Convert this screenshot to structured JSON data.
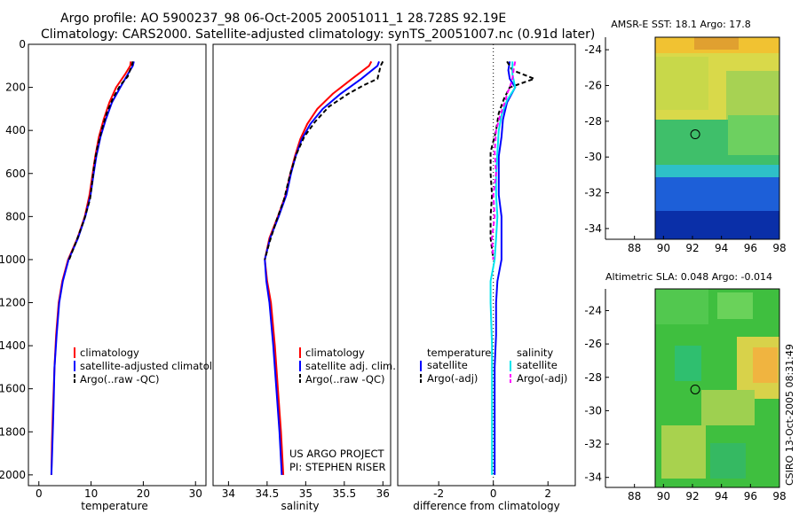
{
  "figure": {
    "title_line1": "Argo profile: AO 5900237_98 06-Oct-2005 20051011_1 28.728S 92.19E",
    "title_line2": "Climatology: CARS2000. Satellite-adjusted climatology: synTS_20051007.nc (0.91d later)",
    "project_line1": "US ARGO PROJECT",
    "project_line2": "PI: STEPHEN RISER",
    "side_stamp": "CSIRO 13-Oct-2005 08:31:49"
  },
  "colors": {
    "climatology": "#ff0000",
    "satellite": "#0000ff",
    "argo": "#000000",
    "sal_satellite": "#00e5ee",
    "sal_argo": "#ff00ff"
  },
  "chart_data": [
    {
      "type": "line",
      "id": "temperature",
      "xlabel": "temperature",
      "xlim": [
        -2,
        32
      ],
      "ylim": [
        0,
        2050
      ],
      "y_reversed": true,
      "xticks": [
        0,
        10,
        20,
        30
      ],
      "yticks": [
        0,
        200,
        400,
        600,
        800,
        1000,
        1200,
        1400,
        1600,
        1800,
        2000
      ],
      "legend": {
        "position": "lower-right",
        "entries": [
          "climatology",
          "satellite-adjusted climatology",
          "Argo(..raw -QC)"
        ]
      },
      "series": [
        {
          "name": "climatology",
          "style": "solid",
          "color": "#ff0000",
          "points": [
            [
              17.6,
              80
            ],
            [
              17.5,
              100
            ],
            [
              16.5,
              140
            ],
            [
              14.8,
              200
            ],
            [
              13.5,
              270
            ],
            [
              12.4,
              350
            ],
            [
              11.5,
              430
            ],
            [
              10.8,
              520
            ],
            [
              10.3,
              600
            ],
            [
              9.7,
              700
            ],
            [
              8.8,
              800
            ],
            [
              7.4,
              900
            ],
            [
              5.6,
              1000
            ],
            [
              4.5,
              1100
            ],
            [
              3.8,
              1200
            ],
            [
              3.3,
              1350
            ],
            [
              3.0,
              1500
            ],
            [
              2.7,
              1700
            ],
            [
              2.5,
              1850
            ],
            [
              2.4,
              2000
            ]
          ]
        },
        {
          "name": "satellite-adjusted climatology",
          "style": "solid",
          "color": "#0000ff",
          "points": [
            [
              18.2,
              80
            ],
            [
              18.0,
              100
            ],
            [
              17.0,
              140
            ],
            [
              15.6,
              200
            ],
            [
              14.0,
              270
            ],
            [
              12.8,
              350
            ],
            [
              11.8,
              430
            ],
            [
              11.0,
              520
            ],
            [
              10.5,
              600
            ],
            [
              9.9,
              700
            ],
            [
              8.9,
              800
            ],
            [
              7.5,
              900
            ],
            [
              5.7,
              1000
            ],
            [
              4.6,
              1100
            ],
            [
              3.9,
              1200
            ],
            [
              3.4,
              1350
            ],
            [
              3.0,
              1500
            ],
            [
              2.8,
              1700
            ],
            [
              2.6,
              1850
            ],
            [
              2.4,
              2000
            ]
          ]
        },
        {
          "name": "Argo(..raw -QC)",
          "style": "dashed",
          "color": "#000000",
          "points": [
            [
              18.0,
              80
            ],
            [
              17.8,
              100
            ],
            [
              17.3,
              130
            ],
            [
              17.0,
              150
            ],
            [
              15.6,
              190
            ],
            [
              14.2,
              250
            ],
            [
              13.0,
              320
            ],
            [
              12.0,
              400
            ],
            [
              11.2,
              480
            ],
            [
              10.6,
              560
            ],
            [
              10.2,
              640
            ],
            [
              9.8,
              720
            ],
            [
              8.6,
              820
            ],
            [
              7.1,
              920
            ],
            [
              5.8,
              1000
            ]
          ]
        }
      ]
    },
    {
      "type": "line",
      "id": "salinity",
      "xlabel": "salinity",
      "xlim": [
        33.8,
        36.1
      ],
      "ylim": [
        0,
        2050
      ],
      "y_reversed": true,
      "xticks": [
        34,
        34.5,
        35,
        35.5,
        36
      ],
      "legend": {
        "position": "lower-right",
        "entries": [
          "climatology",
          "satellite adj. clim.",
          "Argo(..raw -QC)"
        ]
      },
      "series": [
        {
          "name": "climatology",
          "style": "solid",
          "color": "#ff0000",
          "points": [
            [
              35.85,
              80
            ],
            [
              35.82,
              100
            ],
            [
              35.6,
              160
            ],
            [
              35.35,
              230
            ],
            [
              35.15,
              300
            ],
            [
              35.02,
              370
            ],
            [
              34.93,
              440
            ],
            [
              34.86,
              520
            ],
            [
              34.8,
              600
            ],
            [
              34.74,
              700
            ],
            [
              34.64,
              800
            ],
            [
              34.53,
              900
            ],
            [
              34.47,
              1000
            ],
            [
              34.5,
              1100
            ],
            [
              34.55,
              1200
            ],
            [
              34.6,
              1400
            ],
            [
              34.64,
              1600
            ],
            [
              34.68,
              1800
            ],
            [
              34.71,
              2000
            ]
          ]
        },
        {
          "name": "satellite adj. clim.",
          "style": "solid",
          "color": "#0000ff",
          "points": [
            [
              35.95,
              80
            ],
            [
              35.93,
              100
            ],
            [
              35.72,
              160
            ],
            [
              35.45,
              230
            ],
            [
              35.22,
              300
            ],
            [
              35.06,
              370
            ],
            [
              34.95,
              440
            ],
            [
              34.87,
              520
            ],
            [
              34.81,
              600
            ],
            [
              34.75,
              700
            ],
            [
              34.65,
              800
            ],
            [
              34.54,
              900
            ],
            [
              34.47,
              1000
            ],
            [
              34.49,
              1100
            ],
            [
              34.53,
              1200
            ],
            [
              34.58,
              1400
            ],
            [
              34.62,
              1600
            ],
            [
              34.66,
              1800
            ],
            [
              34.69,
              2000
            ]
          ]
        },
        {
          "name": "Argo(..raw -QC)",
          "style": "dashed",
          "color": "#000000",
          "points": [
            [
              36.0,
              80
            ],
            [
              35.97,
              100
            ],
            [
              35.95,
              130
            ],
            [
              35.93,
              160
            ],
            [
              35.75,
              190
            ],
            [
              35.55,
              230
            ],
            [
              35.3,
              290
            ],
            [
              35.12,
              360
            ],
            [
              34.98,
              430
            ],
            [
              34.88,
              510
            ],
            [
              34.8,
              600
            ],
            [
              34.72,
              720
            ],
            [
              34.62,
              820
            ],
            [
              34.53,
              920
            ],
            [
              34.47,
              1000
            ]
          ]
        }
      ]
    },
    {
      "type": "line",
      "id": "difference",
      "xlabel": "difference from climatology",
      "xlim": [
        -3.5,
        3.0
      ],
      "ylim": [
        0,
        2050
      ],
      "y_reversed": true,
      "xticks": [
        -2,
        0,
        2
      ],
      "zero_line": {
        "x": 0,
        "style": "dotted"
      },
      "legend": {
        "position": "lower-right",
        "groups": [
          {
            "title": "temperature",
            "entries": [
              "satellite",
              "Argo(-adj)"
            ]
          },
          {
            "title": "salinity",
            "entries": [
              "satellite",
              "Argo(-adj)"
            ]
          }
        ]
      },
      "series": [
        {
          "name": "temperature satellite",
          "style": "solid",
          "color": "#0000ff",
          "points": [
            [
              0.6,
              80
            ],
            [
              0.55,
              120
            ],
            [
              0.6,
              160
            ],
            [
              0.8,
              200
            ],
            [
              0.5,
              270
            ],
            [
              0.35,
              350
            ],
            [
              0.3,
              430
            ],
            [
              0.2,
              520
            ],
            [
              0.2,
              600
            ],
            [
              0.2,
              700
            ],
            [
              0.3,
              800
            ],
            [
              0.3,
              900
            ],
            [
              0.3,
              1000
            ],
            [
              0.15,
              1100
            ],
            [
              0.1,
              1200
            ],
            [
              0.1,
              1350
            ],
            [
              0.05,
              1500
            ],
            [
              0.05,
              1700
            ],
            [
              0.05,
              1850
            ],
            [
              0.05,
              2000
            ]
          ]
        },
        {
          "name": "temperature Argo(-adj)",
          "style": "dashed",
          "color": "#000000",
          "points": [
            [
              0.5,
              80
            ],
            [
              0.7,
              120
            ],
            [
              1.5,
              160
            ],
            [
              0.6,
              200
            ],
            [
              0.4,
              250
            ],
            [
              0.2,
              320
            ],
            [
              0.1,
              400
            ],
            [
              -0.1,
              500
            ],
            [
              -0.1,
              600
            ],
            [
              -0.05,
              700
            ],
            [
              -0.1,
              800
            ],
            [
              -0.1,
              900
            ],
            [
              0.0,
              1000
            ]
          ]
        },
        {
          "name": "salinity satellite",
          "style": "solid",
          "color": "#00e5ee",
          "points": [
            [
              0.7,
              80
            ],
            [
              0.7,
              140
            ],
            [
              0.8,
              200
            ],
            [
              0.5,
              260
            ],
            [
              0.3,
              330
            ],
            [
              0.2,
              400
            ],
            [
              0.15,
              500
            ],
            [
              0.1,
              600
            ],
            [
              0.1,
              700
            ],
            [
              0.15,
              800
            ],
            [
              0.1,
              900
            ],
            [
              0.05,
              1000
            ],
            [
              -0.1,
              1100
            ],
            [
              -0.1,
              1200
            ],
            [
              -0.05,
              1400
            ],
            [
              -0.05,
              1600
            ],
            [
              -0.05,
              1800
            ],
            [
              -0.05,
              2000
            ]
          ]
        },
        {
          "name": "salinity Argo(-adj)",
          "style": "dashed",
          "color": "#ff00ff",
          "points": [
            [
              0.8,
              80
            ],
            [
              0.75,
              110
            ],
            [
              0.7,
              160
            ],
            [
              0.6,
              200
            ],
            [
              0.5,
              230
            ],
            [
              0.45,
              260
            ],
            [
              0.25,
              330
            ],
            [
              0.1,
              400
            ],
            [
              0.05,
              500
            ],
            [
              0.1,
              600
            ],
            [
              0.0,
              700
            ],
            [
              0.05,
              800
            ],
            [
              -0.05,
              900
            ],
            [
              0.0,
              1000
            ]
          ]
        }
      ]
    },
    {
      "type": "heatmap",
      "id": "amsre_sst",
      "title": "AMSR-E SST: 18.1 Argo: 17.8",
      "xlim": [
        86,
        98
      ],
      "ylim": [
        -34.6,
        -23.3
      ],
      "xticks": [
        88,
        90,
        92,
        94,
        96,
        98
      ],
      "yticks": [
        -24,
        -26,
        -28,
        -30,
        -32,
        -34
      ],
      "data_extent_x": [
        90,
        98
      ],
      "marker": {
        "lon": 92.19,
        "lat": -28.728
      },
      "bands": [
        {
          "lat_max": -23.3,
          "lat_min": -24.5,
          "value": "warm"
        },
        {
          "lat_max": -24.5,
          "lat_min": -27.3,
          "value": "mid-warm"
        },
        {
          "lat_max": -27.3,
          "lat_min": -30.5,
          "value": "mid"
        },
        {
          "lat_max": -30.5,
          "lat_min": -32.0,
          "value": "cool"
        },
        {
          "lat_max": -32.0,
          "lat_min": -34.6,
          "value": "cold"
        }
      ]
    },
    {
      "type": "heatmap",
      "id": "altimetric_sla",
      "title": "Altimetric SLA: 0.048 Argo: -0.014",
      "xlim": [
        86,
        98
      ],
      "ylim": [
        -34.6,
        -22.7
      ],
      "xticks": [
        88,
        90,
        92,
        94,
        96,
        98
      ],
      "yticks": [
        -24,
        -26,
        -28,
        -30,
        -32,
        -34
      ],
      "data_extent_x": [
        90,
        98
      ],
      "marker": {
        "lon": 92.19,
        "lat": -28.728
      }
    }
  ]
}
